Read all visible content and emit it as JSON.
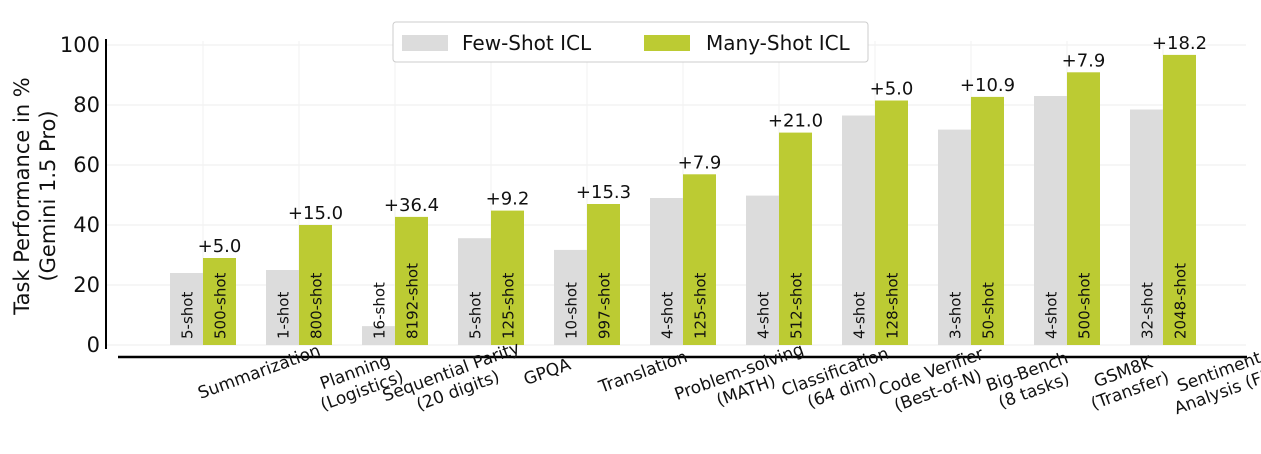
{
  "chart_data": {
    "type": "bar",
    "ylabel_lines": [
      "Task Performance in %",
      "(Gemini 1.5 Pro)"
    ],
    "ylim": [
      0,
      100
    ],
    "yticks": [
      0,
      20,
      40,
      60,
      80,
      100
    ],
    "grid": true,
    "legend_position": "top-center",
    "categories": [
      {
        "lines": [
          "Summarization"
        ]
      },
      {
        "lines": [
          "Planning",
          "(Logistics)"
        ]
      },
      {
        "lines": [
          "Sequential Parity",
          "(20 digits)"
        ]
      },
      {
        "lines": [
          "GPQA"
        ]
      },
      {
        "lines": [
          "Translation"
        ]
      },
      {
        "lines": [
          "Problem-solving",
          "(MATH)"
        ]
      },
      {
        "lines": [
          "Classification",
          "(64 dim)"
        ]
      },
      {
        "lines": [
          "Code Verifier",
          "(Best-of-N)"
        ]
      },
      {
        "lines": [
          "Big-Bench",
          "(8 tasks)"
        ]
      },
      {
        "lines": [
          "GSM8K",
          "(Transfer)"
        ]
      },
      {
        "lines": [
          "Sentiment",
          "Analysis (FP)"
        ]
      }
    ],
    "series": [
      {
        "name": "Few-Shot ICL",
        "color": "#dcdcdc",
        "values": [
          24.0,
          25.0,
          6.3,
          35.6,
          31.7,
          49.0,
          49.8,
          76.5,
          71.8,
          83.0,
          78.5
        ],
        "shot_labels": [
          "5-shot",
          "1-shot",
          "16-shot",
          "5-shot",
          "10-shot",
          "4-shot",
          "4-shot",
          "4-shot",
          "3-shot",
          "4-shot",
          "32-shot"
        ]
      },
      {
        "name": "Many-Shot ICL",
        "color": "#bccb33",
        "values": [
          29.0,
          40.0,
          42.7,
          44.8,
          47.0,
          56.9,
          70.8,
          81.5,
          82.7,
          90.9,
          96.7
        ],
        "shot_labels": [
          "500-shot",
          "800-shot",
          "8192-shot",
          "125-shot",
          "997-shot",
          "125-shot",
          "512-shot",
          "128-shot",
          "50-shot",
          "500-shot",
          "2048-shot"
        ]
      }
    ],
    "gain_labels": [
      "+5.0",
      "+15.0",
      "+36.4",
      "+9.2",
      "+15.3",
      "+7.9",
      "+21.0",
      "+5.0",
      "+10.9",
      "+7.9",
      "+18.2"
    ]
  }
}
